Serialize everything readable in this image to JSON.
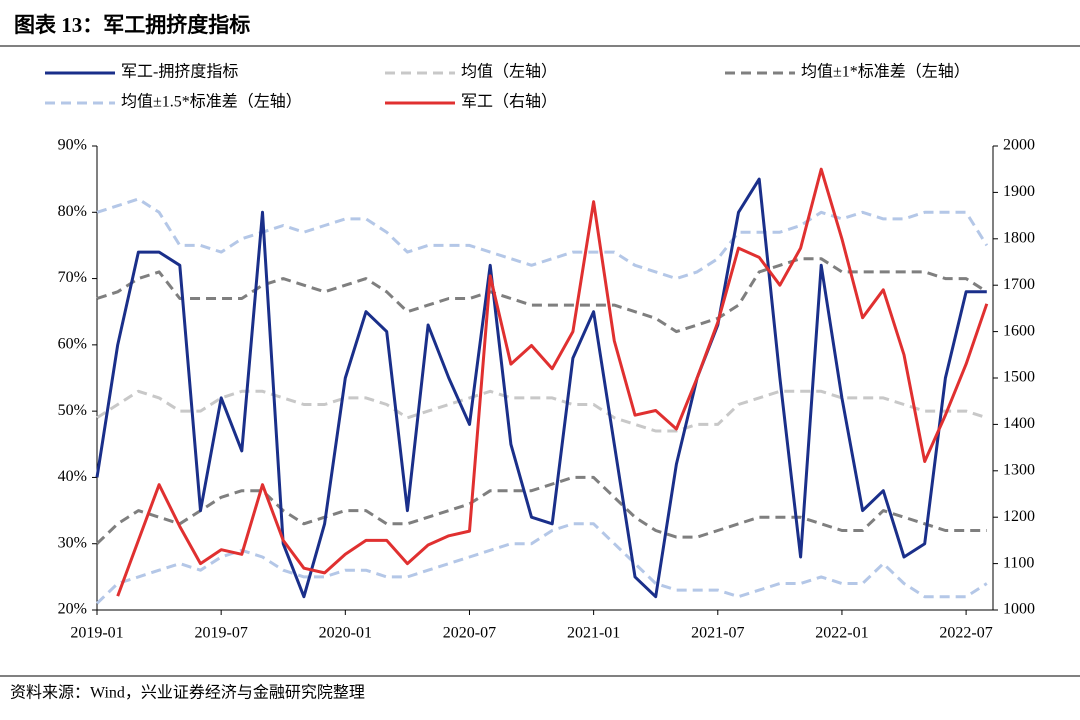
{
  "chart_data": {
    "type": "line",
    "title": "图表 13：军工拥挤度指标",
    "source": "资料来源：Wind，兴业证券经济与金融研究院整理",
    "categories": [
      "2019-01",
      null,
      null,
      null,
      null,
      null,
      "2019-07",
      null,
      null,
      null,
      null,
      null,
      "2020-01",
      null,
      null,
      null,
      null,
      null,
      "2020-07",
      null,
      null,
      null,
      null,
      null,
      "2021-01",
      null,
      null,
      null,
      null,
      null,
      "2021-07",
      null,
      null,
      null,
      null,
      null,
      "2022-01",
      null,
      null,
      null,
      null,
      null,
      "2022-07",
      null
    ],
    "ylim": [
      20,
      90
    ],
    "yticks": [
      {
        "value": 20,
        "label": "20%"
      },
      {
        "value": 30,
        "label": "30%"
      },
      {
        "value": 40,
        "label": "40%"
      },
      {
        "value": 50,
        "label": "50%"
      },
      {
        "value": 60,
        "label": "60%"
      },
      {
        "value": 70,
        "label": "70%"
      },
      {
        "value": 80,
        "label": "80%"
      },
      {
        "value": 90,
        "label": "90%"
      }
    ],
    "y2lim": [
      1000,
      2000
    ],
    "y2ticks": [
      1000,
      1100,
      1200,
      1300,
      1400,
      1500,
      1600,
      1700,
      1800,
      1900,
      2000
    ],
    "series": [
      {
        "name": "军工-拥挤度指标",
        "color": "#1a2f8a",
        "dash": false,
        "values": [
          40,
          60,
          74,
          74,
          72,
          35,
          52,
          44,
          80,
          30,
          22,
          33,
          55,
          65,
          62,
          35,
          63,
          55,
          48,
          72,
          45,
          34,
          33,
          58,
          65,
          45,
          25,
          22,
          42,
          55,
          63,
          80,
          85,
          55,
          28,
          72,
          52,
          35,
          38,
          28,
          30,
          55,
          68,
          68
        ]
      },
      {
        "name": "均值（左轴）",
        "color": "#c8c8c8",
        "dash": true,
        "values": [
          49,
          51,
          53,
          52,
          50,
          50,
          52,
          53,
          53,
          52,
          51,
          51,
          52,
          52,
          51,
          49,
          50,
          51,
          52,
          53,
          52,
          52,
          52,
          51,
          51,
          49,
          48,
          47,
          47,
          48,
          48,
          51,
          52,
          53,
          53,
          53,
          52,
          52,
          52,
          51,
          50,
          50,
          50,
          49
        ]
      },
      {
        "name": "均值±1*标准差（左轴）",
        "color": "#7f7f7f",
        "dash": true,
        "values": [
          67,
          68,
          70,
          71,
          67,
          67,
          67,
          67,
          69,
          70,
          69,
          68,
          69,
          70,
          68,
          65,
          66,
          67,
          67,
          68,
          67,
          66,
          66,
          66,
          66,
          66,
          65,
          64,
          62,
          63,
          64,
          66,
          71,
          72,
          73,
          73,
          71,
          71,
          71,
          71,
          71,
          70,
          70,
          68
        ],
        "lower_values": [
          30,
          33,
          35,
          34,
          33,
          35,
          37,
          38,
          38,
          35,
          33,
          34,
          35,
          35,
          33,
          33,
          34,
          35,
          36,
          38,
          38,
          38,
          39,
          40,
          40,
          37,
          34,
          32,
          31,
          31,
          32,
          33,
          34,
          34,
          34,
          33,
          32,
          32,
          35,
          34,
          33,
          32,
          32,
          32
        ]
      },
      {
        "name": "均值±1.5*标准差（左轴）",
        "color": "#b4c7e7",
        "dash": true,
        "values": [
          80,
          81,
          82,
          80,
          75,
          75,
          74,
          76,
          77,
          78,
          77,
          78,
          79,
          79,
          77,
          74,
          75,
          75,
          75,
          74,
          73,
          72,
          73,
          74,
          74,
          74,
          72,
          71,
          70,
          71,
          73,
          77,
          77,
          77,
          78,
          80,
          79,
          80,
          79,
          79,
          80,
          80,
          80,
          75
        ],
        "lower_values": [
          21,
          24,
          25,
          26,
          27,
          26,
          28,
          29,
          28,
          26,
          25,
          25,
          26,
          26,
          25,
          25,
          26,
          27,
          28,
          29,
          30,
          30,
          32,
          33,
          33,
          30,
          27,
          24,
          23,
          23,
          23,
          22,
          23,
          24,
          24,
          25,
          24,
          24,
          27,
          24,
          22,
          22,
          22,
          24
        ]
      },
      {
        "name": "军工（右轴）",
        "color": "#e03030",
        "dash": false,
        "axis": "y2",
        "values": [
          null,
          1030,
          1150,
          1270,
          1180,
          1100,
          1130,
          1120,
          1270,
          1150,
          1090,
          1080,
          1120,
          1150,
          1150,
          1100,
          1140,
          1160,
          1170,
          1720,
          1530,
          1570,
          1520,
          1600,
          1880,
          1580,
          1420,
          1430,
          1390,
          1500,
          1620,
          1780,
          1760,
          1700,
          1780,
          1950,
          1800,
          1630,
          1690,
          1550,
          1320,
          1420,
          1530,
          1660
        ]
      }
    ]
  }
}
